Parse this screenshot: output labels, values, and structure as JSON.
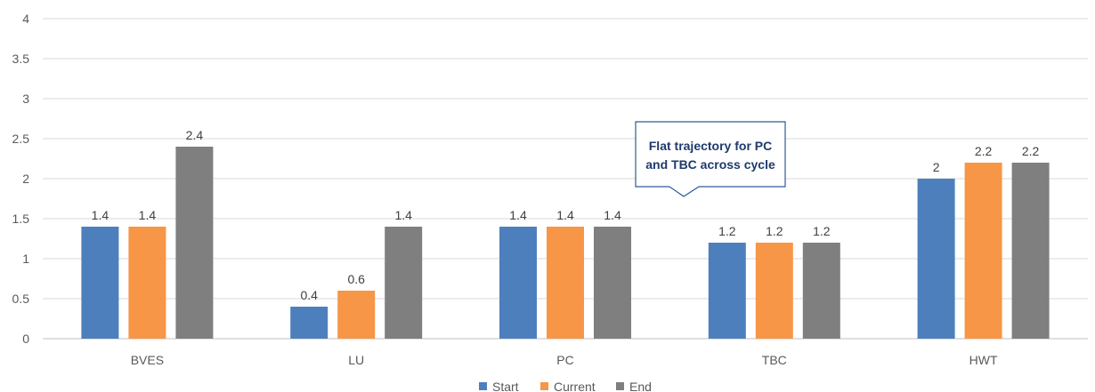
{
  "chart_data": {
    "type": "bar",
    "categories": [
      "BVES",
      "LU",
      "PC",
      "TBC",
      "HWT"
    ],
    "series": [
      {
        "name": "Start",
        "color": "#4e7fbd",
        "values": [
          1.4,
          0.4,
          1.4,
          1.2,
          2
        ]
      },
      {
        "name": "Current",
        "color": "#f79646",
        "values": [
          1.4,
          0.6,
          1.4,
          1.2,
          2.2
        ]
      },
      {
        "name": "End",
        "color": "#7f7f7f",
        "values": [
          2.4,
          1.4,
          1.4,
          1.2,
          2.2
        ]
      }
    ],
    "ylim": [
      0,
      4
    ],
    "yticks": [
      "0",
      "0.5",
      "1",
      "1.5",
      "2",
      "2.5",
      "3",
      "3.5",
      "4"
    ],
    "grid": true,
    "legend_position": "bottom",
    "annotation": {
      "lines": [
        "Flat trajectory for PC",
        "and TBC across cycle"
      ]
    }
  }
}
